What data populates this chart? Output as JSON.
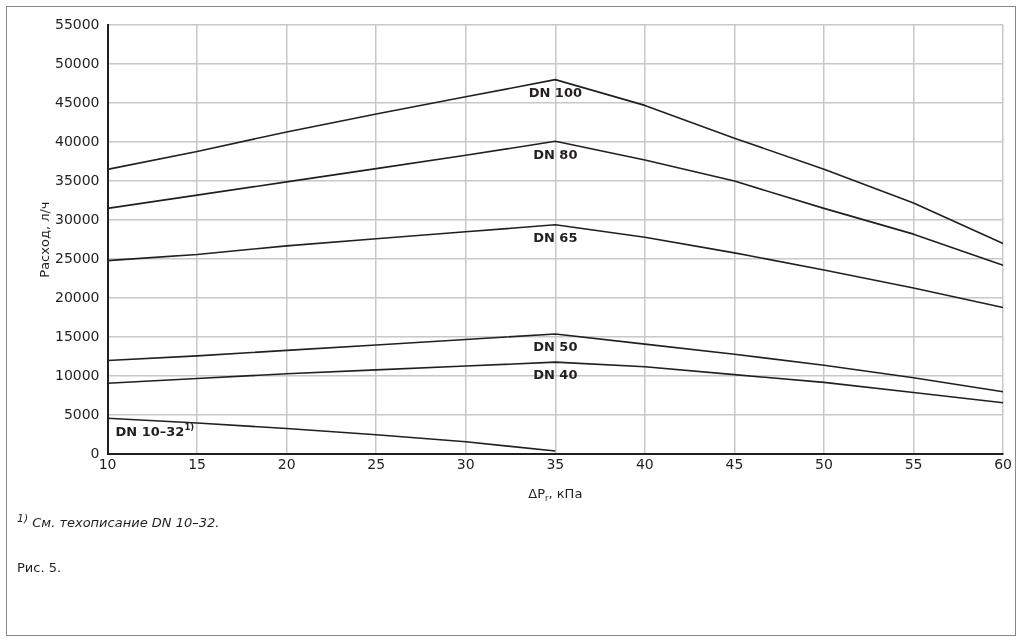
{
  "chart_data": {
    "type": "line",
    "xlabel": "ΔP$_{r}$, кПа",
    "ylabel": "Расход, л/ч",
    "x": [
      10,
      15,
      20,
      25,
      30,
      35,
      40,
      45,
      50,
      55,
      60
    ],
    "series": [
      {
        "name": "DN 100",
        "color": "#231f20",
        "values": [
          36500,
          38800,
          41300,
          43600,
          45800,
          48000,
          44700,
          40500,
          36500,
          32200,
          27000
        ]
      },
      {
        "name": "DN 80",
        "color": "#231f20",
        "values": [
          31500,
          33200,
          34900,
          36600,
          38300,
          40100,
          37700,
          35000,
          31500,
          28200,
          24200
        ]
      },
      {
        "name": "DN 65",
        "color": "#231f20",
        "values": [
          24800,
          25600,
          26700,
          27600,
          28500,
          29400,
          27800,
          25800,
          23600,
          21300,
          18800
        ]
      },
      {
        "name": "DN 50",
        "color": "#231f20",
        "values": [
          12000,
          12600,
          13300,
          14000,
          14700,
          15400,
          14100,
          12800,
          11400,
          9800,
          8000
        ]
      },
      {
        "name": "DN 40",
        "color": "#231f20",
        "values": [
          9100,
          9700,
          10300,
          10800,
          11300,
          11800,
          11200,
          10200,
          9200,
          7900,
          6600
        ]
      },
      {
        "name": "DN 10–32$^{1)}$",
        "color": "#231f20",
        "x": [
          10,
          15,
          20,
          25,
          30,
          35
        ],
        "values": [
          4600,
          4000,
          3300,
          2500,
          1600,
          400
        ]
      }
    ],
    "xlim": [
      10,
      60
    ],
    "xticks": [
      10,
      15,
      20,
      25,
      30,
      35,
      40,
      45,
      50,
      55,
      60
    ],
    "ylim": [
      0,
      55000
    ],
    "yticks": [
      0,
      5000,
      10000,
      15000,
      20000,
      25000,
      30000,
      35000,
      40000,
      45000,
      50000,
      55000
    ],
    "grid": true,
    "legend": false,
    "marker": "none",
    "line_style": "solid",
    "annotations": [
      "$^{1)}$ См. техописание DN 10–32.",
      "Рис. 5."
    ]
  }
}
